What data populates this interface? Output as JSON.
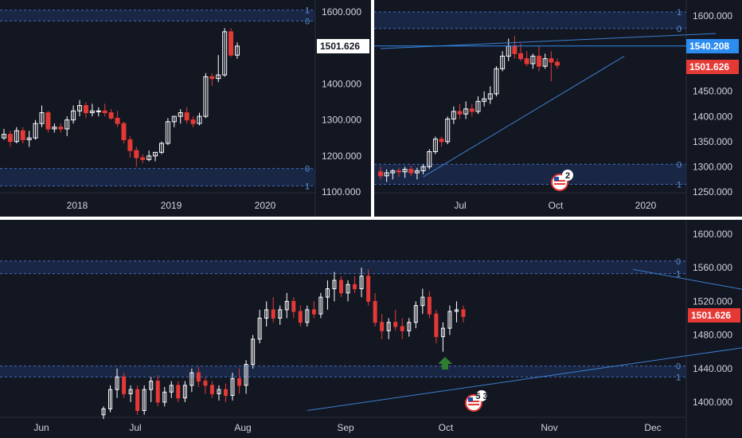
{
  "colors": {
    "background": "#131722",
    "up_candle": "#ffffff",
    "down_candle": "#e53935",
    "zone_fill": "#1c2a4a",
    "zone_border": "#3f6bbf",
    "trendline": "#3d7fd0",
    "price_tag": "#e53935",
    "price_tag_blue": "#2d8cf0",
    "arrow": "#2e7d32",
    "axis_text": "#d1d4dc"
  },
  "icons": {
    "event": "us-flag-icon",
    "arrow": "up-arrow-icon"
  },
  "chart_data": [
    {
      "type": "candlestick",
      "name_on_chart": "",
      "x_tick_labels": [
        "2018",
        "2019",
        "2020"
      ],
      "y_tick_labels": [
        "1600.000",
        "1400.000",
        "1300.000",
        "1200.000",
        "1100.000"
      ],
      "ylim": [
        1100,
        1600
      ],
      "price_tag": "1501.626",
      "price_tag_style": "white",
      "fib_levels": [
        {
          "label": "1",
          "value": 1605
        },
        {
          "label": "0",
          "value": 1575
        },
        {
          "label": "0",
          "value": 1165
        },
        {
          "label": "1",
          "value": 1117
        }
      ],
      "zones": [
        [
          1575,
          1605
        ],
        [
          1117,
          1165
        ]
      ],
      "candles": [
        [
          1250,
          1275,
          1245,
          1260
        ],
        [
          1260,
          1270,
          1225,
          1240
        ],
        [
          1240,
          1280,
          1235,
          1270
        ],
        [
          1270,
          1280,
          1235,
          1245
        ],
        [
          1245,
          1270,
          1225,
          1250
        ],
        [
          1250,
          1300,
          1245,
          1290
        ],
        [
          1290,
          1340,
          1280,
          1320
        ],
        [
          1320,
          1325,
          1265,
          1275
        ],
        [
          1275,
          1290,
          1265,
          1280
        ],
        [
          1280,
          1290,
          1265,
          1275
        ],
        [
          1275,
          1310,
          1255,
          1300
        ],
        [
          1300,
          1340,
          1290,
          1325
        ],
        [
          1325,
          1355,
          1310,
          1340
        ],
        [
          1340,
          1350,
          1305,
          1320
        ],
        [
          1320,
          1345,
          1310,
          1325
        ],
        [
          1325,
          1335,
          1310,
          1325
        ],
        [
          1325,
          1345,
          1310,
          1320
        ],
        [
          1320,
          1330,
          1300,
          1305
        ],
        [
          1305,
          1325,
          1280,
          1290
        ],
        [
          1290,
          1295,
          1235,
          1245
        ],
        [
          1245,
          1255,
          1195,
          1215
        ],
        [
          1215,
          1225,
          1170,
          1195
        ],
        [
          1195,
          1205,
          1180,
          1190
        ],
        [
          1190,
          1215,
          1185,
          1200
        ],
        [
          1200,
          1210,
          1185,
          1210
        ],
        [
          1210,
          1240,
          1205,
          1235
        ],
        [
          1235,
          1305,
          1230,
          1295
        ],
        [
          1295,
          1310,
          1280,
          1310
        ],
        [
          1310,
          1330,
          1290,
          1320
        ],
        [
          1320,
          1335,
          1290,
          1300
        ],
        [
          1300,
          1310,
          1280,
          1290
        ],
        [
          1290,
          1320,
          1285,
          1310
        ],
        [
          1310,
          1430,
          1305,
          1420
        ],
        [
          1420,
          1430,
          1395,
          1415
        ],
        [
          1415,
          1480,
          1405,
          1425
        ],
        [
          1425,
          1555,
          1420,
          1545
        ],
        [
          1545,
          1555,
          1475,
          1480
        ],
        [
          1480,
          1515,
          1470,
          1505
        ]
      ]
    },
    {
      "type": "candlestick",
      "name_on_chart": "",
      "x_tick_labels": [
        "Jul",
        "Oct",
        "2020"
      ],
      "y_tick_labels": [
        "1600.000",
        "1450.000",
        "1400.000",
        "1350.000",
        "1300.000",
        "1250.000"
      ],
      "ylim": [
        1245,
        1620
      ],
      "price_tag": "1501.626",
      "price_tag_style": "red",
      "price_tag_2": "1540.208",
      "price_tag_2_style": "blue",
      "event_badge": "2",
      "fib_levels": [
        {
          "label": "1",
          "value": 1608
        },
        {
          "label": "0",
          "value": 1575
        },
        {
          "label": "0",
          "value": 1305
        },
        {
          "label": "1",
          "value": 1265
        }
      ],
      "zones": [
        [
          1575,
          1608
        ],
        [
          1265,
          1305
        ]
      ],
      "trendlines": [
        {
          "p1": [
            0,
            1535
          ],
          "p2": [
            55,
            1565
          ]
        },
        {
          "p1": [
            7,
            1280
          ],
          "p2": [
            40,
            1520
          ]
        }
      ],
      "horizontal_line": 1540.208,
      "candles": [
        [
          1290,
          1300,
          1275,
          1282
        ],
        [
          1282,
          1295,
          1270,
          1288
        ],
        [
          1288,
          1295,
          1275,
          1292
        ],
        [
          1292,
          1298,
          1280,
          1290
        ],
        [
          1290,
          1300,
          1278,
          1295
        ],
        [
          1295,
          1302,
          1282,
          1288
        ],
        [
          1288,
          1298,
          1275,
          1292
        ],
        [
          1292,
          1305,
          1285,
          1300
        ],
        [
          1300,
          1335,
          1295,
          1330
        ],
        [
          1330,
          1360,
          1325,
          1355
        ],
        [
          1355,
          1360,
          1340,
          1350
        ],
        [
          1350,
          1400,
          1345,
          1395
        ],
        [
          1395,
          1420,
          1385,
          1410
        ],
        [
          1410,
          1425,
          1395,
          1405
        ],
        [
          1405,
          1430,
          1395,
          1415
        ],
        [
          1415,
          1425,
          1400,
          1410
        ],
        [
          1410,
          1440,
          1405,
          1430
        ],
        [
          1430,
          1450,
          1420,
          1435
        ],
        [
          1435,
          1460,
          1425,
          1445
        ],
        [
          1445,
          1500,
          1440,
          1495
        ],
        [
          1495,
          1530,
          1490,
          1520
        ],
        [
          1520,
          1555,
          1510,
          1540
        ],
        [
          1540,
          1560,
          1515,
          1525
        ],
        [
          1525,
          1545,
          1510,
          1515
        ],
        [
          1515,
          1530,
          1500,
          1505
        ],
        [
          1505,
          1525,
          1495,
          1520
        ],
        [
          1520,
          1540,
          1490,
          1500
        ],
        [
          1500,
          1525,
          1495,
          1515
        ],
        [
          1515,
          1530,
          1470,
          1508
        ],
        [
          1508,
          1515,
          1495,
          1502
        ]
      ]
    },
    {
      "type": "candlestick",
      "name_on_chart": "",
      "x_tick_labels": [
        "Jun",
        "Jul",
        "Aug",
        "Sep",
        "Oct",
        "Nov",
        "Dec"
      ],
      "y_tick_labels": [
        "1600.000",
        "1560.000",
        "1520.000",
        "1480.000",
        "1440.000",
        "1400.000"
      ],
      "ylim": [
        1385,
        1610
      ],
      "price_tag": "1501.626",
      "price_tag_style": "red",
      "event_badge": "5 3",
      "fib_levels": [
        {
          "label": "0",
          "value": 1568
        },
        {
          "label": "1",
          "value": 1553
        },
        {
          "label": "0",
          "value": 1443
        },
        {
          "label": "1",
          "value": 1430
        }
      ],
      "zones": [
        [
          1553,
          1568
        ],
        [
          1430,
          1443
        ]
      ],
      "trendlines": [
        {
          "p1": [
            30,
            1390
          ],
          "p2": [
            150,
            1530
          ]
        },
        {
          "p1": [
            78,
            1558
          ],
          "p2": [
            150,
            1452
          ]
        }
      ],
      "candles": [
        [
          1385,
          1395,
          1380,
          1392
        ],
        [
          1392,
          1420,
          1388,
          1415
        ],
        [
          1415,
          1440,
          1405,
          1430
        ],
        [
          1430,
          1435,
          1405,
          1410
        ],
        [
          1410,
          1420,
          1400,
          1415
        ],
        [
          1415,
          1420,
          1385,
          1390
        ],
        [
          1390,
          1420,
          1385,
          1415
        ],
        [
          1415,
          1430,
          1400,
          1425
        ],
        [
          1425,
          1432,
          1395,
          1400
        ],
        [
          1400,
          1418,
          1395,
          1412
        ],
        [
          1412,
          1425,
          1405,
          1420
        ],
        [
          1420,
          1425,
          1400,
          1405
        ],
        [
          1405,
          1425,
          1400,
          1420
        ],
        [
          1420,
          1440,
          1412,
          1435
        ],
        [
          1435,
          1442,
          1418,
          1425
        ],
        [
          1425,
          1430,
          1410,
          1420
        ],
        [
          1420,
          1425,
          1405,
          1410
        ],
        [
          1410,
          1420,
          1402,
          1415
        ],
        [
          1415,
          1422,
          1400,
          1408
        ],
        [
          1408,
          1435,
          1402,
          1428
        ],
        [
          1428,
          1440,
          1410,
          1420
        ],
        [
          1420,
          1450,
          1410,
          1445
        ],
        [
          1445,
          1480,
          1440,
          1475
        ],
        [
          1475,
          1510,
          1470,
          1500
        ],
        [
          1500,
          1520,
          1490,
          1510
        ],
        [
          1510,
          1525,
          1495,
          1500
        ],
        [
          1500,
          1515,
          1492,
          1510
        ],
        [
          1510,
          1530,
          1500,
          1520
        ],
        [
          1520,
          1525,
          1500,
          1508
        ],
        [
          1508,
          1515,
          1490,
          1495
        ],
        [
          1495,
          1515,
          1490,
          1510
        ],
        [
          1510,
          1520,
          1500,
          1505
        ],
        [
          1505,
          1530,
          1500,
          1525
        ],
        [
          1525,
          1545,
          1510,
          1535
        ],
        [
          1535,
          1555,
          1520,
          1545
        ],
        [
          1545,
          1550,
          1525,
          1530
        ],
        [
          1530,
          1545,
          1520,
          1540
        ],
        [
          1540,
          1550,
          1530,
          1535
        ],
        [
          1535,
          1560,
          1525,
          1550
        ],
        [
          1550,
          1558,
          1515,
          1520
        ],
        [
          1520,
          1530,
          1490,
          1495
        ],
        [
          1495,
          1505,
          1475,
          1485
        ],
        [
          1485,
          1500,
          1475,
          1495
        ],
        [
          1495,
          1510,
          1485,
          1490
        ],
        [
          1490,
          1500,
          1475,
          1485
        ],
        [
          1485,
          1500,
          1478,
          1495
        ],
        [
          1495,
          1520,
          1488,
          1515
        ],
        [
          1515,
          1535,
          1505,
          1525
        ],
        [
          1525,
          1532,
          1500,
          1505
        ],
        [
          1505,
          1510,
          1470,
          1478
        ],
        [
          1478,
          1495,
          1460,
          1488
        ],
        [
          1488,
          1515,
          1480,
          1508
        ],
        [
          1508,
          1520,
          1495,
          1510
        ],
        [
          1510,
          1515,
          1495,
          1502
        ]
      ]
    }
  ]
}
